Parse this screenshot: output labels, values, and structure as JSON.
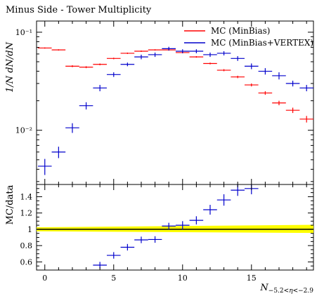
{
  "title": "Minus Side - Tower Multiplicity",
  "colors": {
    "mc_minbias": "#ff0000",
    "mc_vertex": "#0000cc",
    "band": "#ffff00",
    "axis": "#000000"
  },
  "chart_data": [
    {
      "type": "scatter",
      "title": "Minus Side - Tower Multiplicity",
      "ylabel": "1/N dN/dN",
      "yscale": "log",
      "ylim": [
        0.0028,
        0.13
      ],
      "xlim": [
        -0.6,
        19.5
      ],
      "legend_position": "top-right",
      "y_ticks": [
        {
          "value": 0.01,
          "label": "10⁻²"
        },
        {
          "value": 0.1,
          "label": "10⁻¹"
        }
      ],
      "series": [
        {
          "name": "MC (MinBias)",
          "color": "#ff0000",
          "points": [
            {
              "x": 0,
              "y": 0.069,
              "xerr": 0.5,
              "yerr": 0.001
            },
            {
              "x": 1,
              "y": 0.066,
              "xerr": 0.5,
              "yerr": 0.001
            },
            {
              "x": 2,
              "y": 0.045,
              "xerr": 0.5,
              "yerr": 0.001
            },
            {
              "x": 3,
              "y": 0.044,
              "xerr": 0.5,
              "yerr": 0.001
            },
            {
              "x": 4,
              "y": 0.047,
              "xerr": 0.5,
              "yerr": 0.001
            },
            {
              "x": 5,
              "y": 0.054,
              "xerr": 0.5,
              "yerr": 0.001
            },
            {
              "x": 6,
              "y": 0.061,
              "xerr": 0.5,
              "yerr": 0.001
            },
            {
              "x": 7,
              "y": 0.064,
              "xerr": 0.5,
              "yerr": 0.001
            },
            {
              "x": 8,
              "y": 0.066,
              "xerr": 0.5,
              "yerr": 0.001
            },
            {
              "x": 9,
              "y": 0.066,
              "xerr": 0.5,
              "yerr": 0.001
            },
            {
              "x": 10,
              "y": 0.062,
              "xerr": 0.5,
              "yerr": 0.001
            },
            {
              "x": 11,
              "y": 0.056,
              "xerr": 0.5,
              "yerr": 0.001
            },
            {
              "x": 12,
              "y": 0.048,
              "xerr": 0.5,
              "yerr": 0.001
            },
            {
              "x": 13,
              "y": 0.041,
              "xerr": 0.5,
              "yerr": 0.001
            },
            {
              "x": 14,
              "y": 0.035,
              "xerr": 0.5,
              "yerr": 0.001
            },
            {
              "x": 15,
              "y": 0.029,
              "xerr": 0.5,
              "yerr": 0.001
            },
            {
              "x": 16,
              "y": 0.024,
              "xerr": 0.5,
              "yerr": 0.001
            },
            {
              "x": 17,
              "y": 0.019,
              "xerr": 0.5,
              "yerr": 0.001
            },
            {
              "x": 18,
              "y": 0.016,
              "xerr": 0.5,
              "yerr": 0.001
            },
            {
              "x": 19,
              "y": 0.013,
              "xerr": 0.5,
              "yerr": 0.001
            }
          ]
        },
        {
          "name": "MC (MinBias+VERTEX)",
          "color": "#0000cc",
          "points": [
            {
              "x": 0,
              "y": 0.0043,
              "xerr": 0.5,
              "yerr": 0.0008
            },
            {
              "x": 1,
              "y": 0.006,
              "xerr": 0.5,
              "yerr": 0.0008
            },
            {
              "x": 2,
              "y": 0.0106,
              "xerr": 0.5,
              "yerr": 0.0012
            },
            {
              "x": 3,
              "y": 0.0178,
              "xerr": 0.5,
              "yerr": 0.0015
            },
            {
              "x": 4,
              "y": 0.027,
              "xerr": 0.5,
              "yerr": 0.002
            },
            {
              "x": 5,
              "y": 0.037,
              "xerr": 0.5,
              "yerr": 0.002
            },
            {
              "x": 6,
              "y": 0.047,
              "xerr": 0.5,
              "yerr": 0.002
            },
            {
              "x": 7,
              "y": 0.056,
              "xerr": 0.5,
              "yerr": 0.003
            },
            {
              "x": 8,
              "y": 0.059,
              "xerr": 0.5,
              "yerr": 0.003
            },
            {
              "x": 9,
              "y": 0.068,
              "xerr": 0.5,
              "yerr": 0.003
            },
            {
              "x": 10,
              "y": 0.064,
              "xerr": 0.5,
              "yerr": 0.003
            },
            {
              "x": 11,
              "y": 0.064,
              "xerr": 0.5,
              "yerr": 0.003
            },
            {
              "x": 12,
              "y": 0.059,
              "xerr": 0.5,
              "yerr": 0.003
            },
            {
              "x": 13,
              "y": 0.061,
              "xerr": 0.5,
              "yerr": 0.003
            },
            {
              "x": 14,
              "y": 0.054,
              "xerr": 0.5,
              "yerr": 0.003
            },
            {
              "x": 15,
              "y": 0.045,
              "xerr": 0.5,
              "yerr": 0.003
            },
            {
              "x": 16,
              "y": 0.04,
              "xerr": 0.5,
              "yerr": 0.003
            },
            {
              "x": 17,
              "y": 0.036,
              "xerr": 0.5,
              "yerr": 0.003
            },
            {
              "x": 18,
              "y": 0.03,
              "xerr": 0.5,
              "yerr": 0.002
            },
            {
              "x": 19,
              "y": 0.027,
              "xerr": 0.5,
              "yerr": 0.002
            }
          ]
        }
      ]
    },
    {
      "type": "scatter",
      "title": "",
      "ylabel": "MC/data",
      "xlabel": "N_{-5.2<η<-2.9}",
      "ylim": [
        0.5,
        1.55
      ],
      "xlim": [
        -0.6,
        19.5
      ],
      "y_ticks": [
        {
          "value": 0.6,
          "label": "0.6"
        },
        {
          "value": 0.8,
          "label": "0.8"
        },
        {
          "value": 1.0,
          "label": "1"
        },
        {
          "value": 1.2,
          "label": "1.2"
        },
        {
          "value": 1.4,
          "label": "1.4"
        }
      ],
      "x_ticks": [
        {
          "value": 0,
          "label": "0"
        },
        {
          "value": 5,
          "label": "5"
        },
        {
          "value": 10,
          "label": "10"
        },
        {
          "value": 15,
          "label": "15"
        }
      ],
      "reference_line": 1.0,
      "band": {
        "x": [
          -0.6,
          19.5
        ],
        "lower": [
          0.975,
          0.955
        ],
        "upper": [
          1.025,
          1.055
        ]
      },
      "series": [
        {
          "name": "MC (MinBias)",
          "color": "#ff0000",
          "points": [
            {
              "x": 0,
              "y": 1.0,
              "xerr": 0.5,
              "yerr": 0.005
            },
            {
              "x": 1,
              "y": 1.0,
              "xerr": 0.5,
              "yerr": 0.005
            },
            {
              "x": 2,
              "y": 1.0,
              "xerr": 0.5,
              "yerr": 0.005
            },
            {
              "x": 3,
              "y": 1.0,
              "xerr": 0.5,
              "yerr": 0.005
            },
            {
              "x": 4,
              "y": 1.0,
              "xerr": 0.5,
              "yerr": 0.005
            },
            {
              "x": 5,
              "y": 1.0,
              "xerr": 0.5,
              "yerr": 0.005
            },
            {
              "x": 6,
              "y": 1.0,
              "xerr": 0.5,
              "yerr": 0.005
            },
            {
              "x": 7,
              "y": 1.0,
              "xerr": 0.5,
              "yerr": 0.005
            },
            {
              "x": 8,
              "y": 1.0,
              "xerr": 0.5,
              "yerr": 0.005
            },
            {
              "x": 9,
              "y": 1.0,
              "xerr": 0.5,
              "yerr": 0.005
            },
            {
              "x": 10,
              "y": 1.0,
              "xerr": 0.5,
              "yerr": 0.005
            },
            {
              "x": 11,
              "y": 1.0,
              "xerr": 0.5,
              "yerr": 0.005
            },
            {
              "x": 12,
              "y": 1.0,
              "xerr": 0.5,
              "yerr": 0.005
            },
            {
              "x": 13,
              "y": 1.0,
              "xerr": 0.5,
              "yerr": 0.005
            },
            {
              "x": 14,
              "y": 1.0,
              "xerr": 0.5,
              "yerr": 0.005
            },
            {
              "x": 15,
              "y": 1.0,
              "xerr": 0.5,
              "yerr": 0.005
            },
            {
              "x": 16,
              "y": 1.0,
              "xerr": 0.5,
              "yerr": 0.005
            },
            {
              "x": 17,
              "y": 1.0,
              "xerr": 0.5,
              "yerr": 0.005
            },
            {
              "x": 18,
              "y": 1.0,
              "xerr": 0.5,
              "yerr": 0.005
            },
            {
              "x": 19,
              "y": 1.0,
              "xerr": 0.5,
              "yerr": 0.005
            }
          ]
        },
        {
          "name": "MC (MinBias+VERTEX)",
          "color": "#0000cc",
          "points": [
            {
              "x": 4,
              "y": 0.56,
              "xerr": 0.5,
              "yerr": 0.04
            },
            {
              "x": 5,
              "y": 0.68,
              "xerr": 0.5,
              "yerr": 0.04
            },
            {
              "x": 6,
              "y": 0.78,
              "xerr": 0.5,
              "yerr": 0.04
            },
            {
              "x": 7,
              "y": 0.87,
              "xerr": 0.5,
              "yerr": 0.04
            },
            {
              "x": 8,
              "y": 0.875,
              "xerr": 0.5,
              "yerr": 0.04
            },
            {
              "x": 9,
              "y": 1.04,
              "xerr": 0.5,
              "yerr": 0.04
            },
            {
              "x": 10,
              "y": 1.05,
              "xerr": 0.5,
              "yerr": 0.05
            },
            {
              "x": 11,
              "y": 1.11,
              "xerr": 0.5,
              "yerr": 0.05
            },
            {
              "x": 12,
              "y": 1.24,
              "xerr": 0.5,
              "yerr": 0.06
            },
            {
              "x": 13,
              "y": 1.36,
              "xerr": 0.5,
              "yerr": 0.07
            },
            {
              "x": 14,
              "y": 1.48,
              "xerr": 0.5,
              "yerr": 0.07
            },
            {
              "x": 15,
              "y": 1.5,
              "xerr": 0.5,
              "yerr": 0.07
            }
          ]
        }
      ]
    }
  ]
}
